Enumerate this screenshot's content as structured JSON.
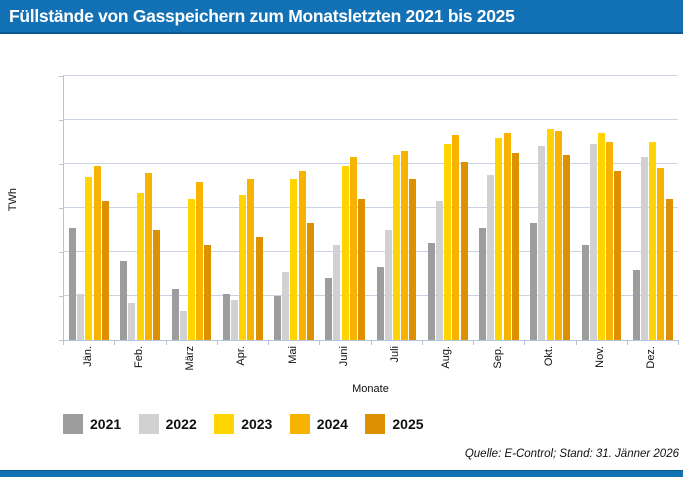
{
  "header": {
    "title": "Füllstände von Gasspeichern zum Monatsletzten 2021 bis 2025"
  },
  "chart_data": {
    "type": "bar",
    "title": "Füllstände von Gasspeichern zum Monatsletzten 2021 bis 2025",
    "xlabel": "Monate",
    "ylabel": "TWh",
    "ylim": [
      0,
      120
    ],
    "ytick_interval": 20,
    "y_tick_labels_visible": false,
    "grid": true,
    "legend_position": "bottom",
    "categories": [
      "Jän.",
      "Feb.",
      "März",
      "Apr.",
      "Mai",
      "Juni",
      "Juli",
      "Aug.",
      "Sep.",
      "Okt.",
      "Nov.",
      "Dez."
    ],
    "series": [
      {
        "name": "2021",
        "color": "#9d9d9d",
        "values": [
          51,
          36,
          23,
          21,
          20,
          28,
          33,
          44,
          51,
          53,
          43,
          32
        ]
      },
      {
        "name": "2022",
        "color": "#d1d1d1",
        "values": [
          21,
          17,
          13,
          18,
          31,
          43,
          50,
          63,
          75,
          88,
          89,
          83
        ]
      },
      {
        "name": "2023",
        "color": "#ffd400",
        "values": [
          74,
          67,
          64,
          66,
          73,
          79,
          84,
          89,
          92,
          96,
          94,
          90
        ]
      },
      {
        "name": "2024",
        "color": "#f8b200",
        "values": [
          79,
          76,
          72,
          73,
          77,
          83,
          86,
          93,
          94,
          95,
          90,
          78
        ]
      },
      {
        "name": "2025",
        "color": "#dd9000",
        "values": [
          63,
          50,
          43,
          47,
          53,
          64,
          73,
          81,
          85,
          84,
          77,
          64
        ]
      }
    ]
  },
  "footer": {
    "source_note": "Quelle: E-Control; Stand: 31. Jänner 2026"
  },
  "colors": {
    "header_bg": "#1270b4",
    "header_border": "#0b5a94",
    "gridline": "#c9d2e2",
    "axis": "#b6c2d8"
  }
}
